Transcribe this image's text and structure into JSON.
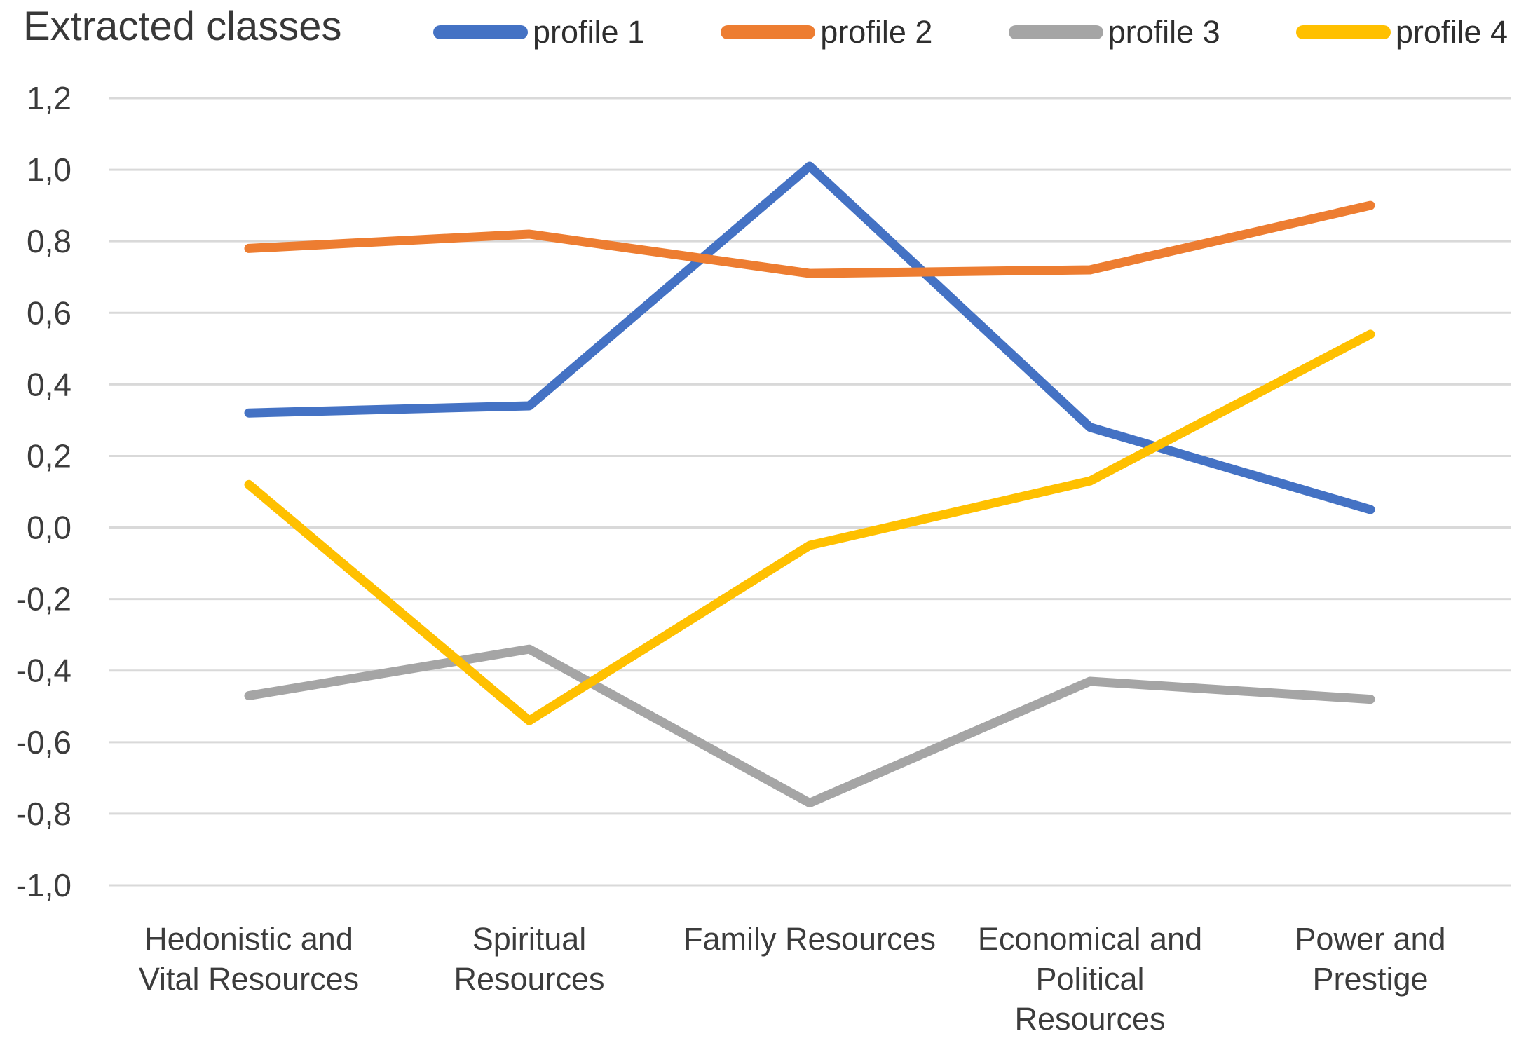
{
  "chart_data": {
    "type": "line",
    "title": "Extracted classes",
    "categories": [
      "Hedonistic and Vital Resources",
      "Spiritual Resources",
      "Family Resources",
      "Economical and Political Resources",
      "Power and Prestige"
    ],
    "category_label_lines": [
      [
        "Hedonistic and",
        "Vital Resources"
      ],
      [
        "Spiritual",
        "Resources"
      ],
      [
        "Family Resources"
      ],
      [
        "Economical and",
        "Political",
        "Resources"
      ],
      [
        "Power and",
        "Prestige"
      ]
    ],
    "series": [
      {
        "name": "profile 1",
        "color": "#4472C4",
        "values": [
          0.32,
          0.34,
          1.01,
          0.28,
          0.05
        ]
      },
      {
        "name": "profile 2",
        "color": "#ED7D31",
        "values": [
          0.78,
          0.82,
          0.71,
          0.72,
          0.9
        ]
      },
      {
        "name": "profile 3",
        "color": "#A5A5A5",
        "values": [
          -0.47,
          -0.34,
          -0.77,
          -0.43,
          -0.48
        ]
      },
      {
        "name": "profile 4",
        "color": "#FFC000",
        "values": [
          0.12,
          -0.54,
          -0.05,
          0.13,
          0.54
        ]
      }
    ],
    "ylim": [
      -1.0,
      1.2
    ],
    "ytick_step": 0.2,
    "ytick_labels": [
      "1,2",
      "1,0",
      "0,8",
      "0,6",
      "0,4",
      "0,2",
      "0,0",
      "-0,2",
      "-0,4",
      "-0,6",
      "-0,8",
      "-1,0"
    ],
    "decimal_separator": ",",
    "grid": true,
    "gridline_color": "#D9D9D9",
    "legend_position": "top",
    "background_color": "#FFFFFF"
  }
}
